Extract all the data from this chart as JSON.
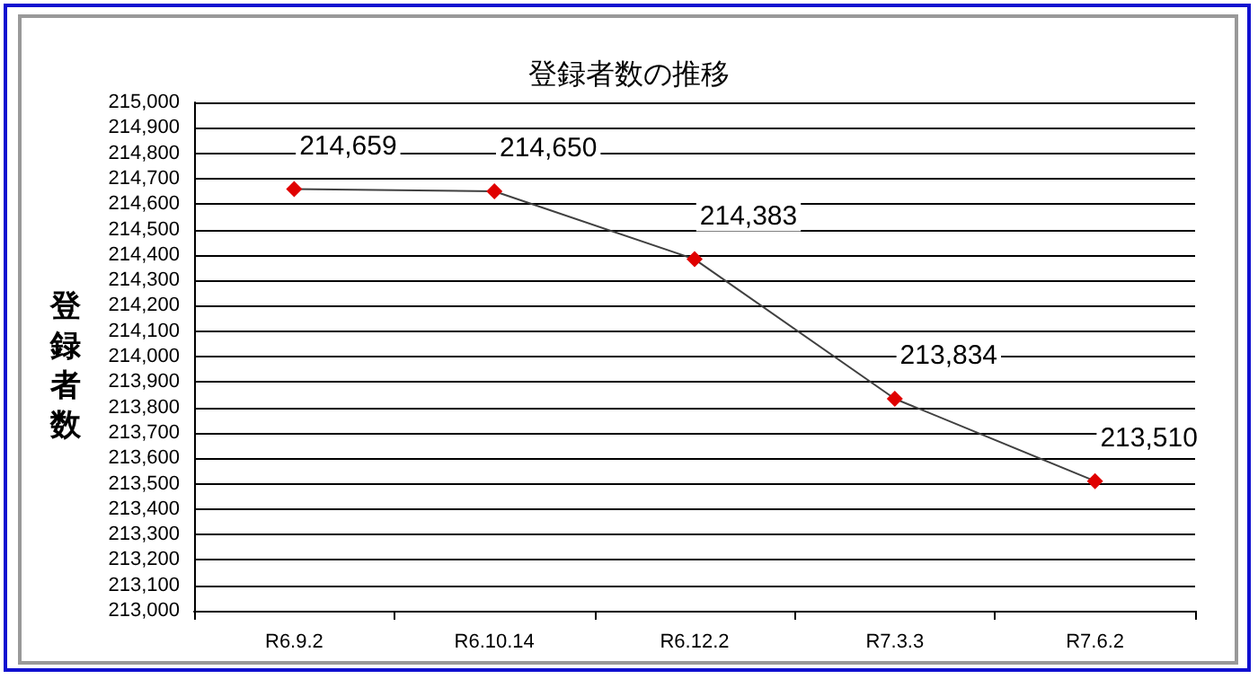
{
  "chart_data": {
    "type": "line",
    "title": "登録者数の推移",
    "ylabel": "登録者数",
    "categories": [
      "R6.9.2",
      "R6.10.14",
      "R6.12.2",
      "R7.3.3",
      "R7.6.2"
    ],
    "series": [
      {
        "color": "#e00000",
        "values": [
          214659,
          214650,
          214383,
          213834,
          213510
        ],
        "value_labels": [
          "214,659",
          "214,650",
          "214,383",
          "213,834",
          "213,510"
        ]
      }
    ],
    "ylim": [
      213000,
      215000
    ],
    "yticks": [
      {
        "value": 213000,
        "label": "213,000"
      },
      {
        "value": 213100,
        "label": "213,100"
      },
      {
        "value": 213200,
        "label": "213,200"
      },
      {
        "value": 213300,
        "label": "213,300"
      },
      {
        "value": 213400,
        "label": "213,400"
      },
      {
        "value": 213500,
        "label": "213,500"
      },
      {
        "value": 213600,
        "label": "213,600"
      },
      {
        "value": 213700,
        "label": "213,700"
      },
      {
        "value": 213800,
        "label": "213,800"
      },
      {
        "value": 213900,
        "label": "213,900"
      },
      {
        "value": 214000,
        "label": "214,000"
      },
      {
        "value": 214100,
        "label": "214,100"
      },
      {
        "value": 214200,
        "label": "214,200"
      },
      {
        "value": 214300,
        "label": "214,300"
      },
      {
        "value": 214400,
        "label": "214,400"
      },
      {
        "value": 214500,
        "label": "214,500"
      },
      {
        "value": 214600,
        "label": "214,600"
      },
      {
        "value": 214700,
        "label": "214,700"
      },
      {
        "value": 214800,
        "label": "214,800"
      },
      {
        "value": 214900,
        "label": "214,900"
      },
      {
        "value": 215000,
        "label": "215,000"
      }
    ],
    "grid": "y",
    "marker": "diamond",
    "line_style": "solid"
  }
}
